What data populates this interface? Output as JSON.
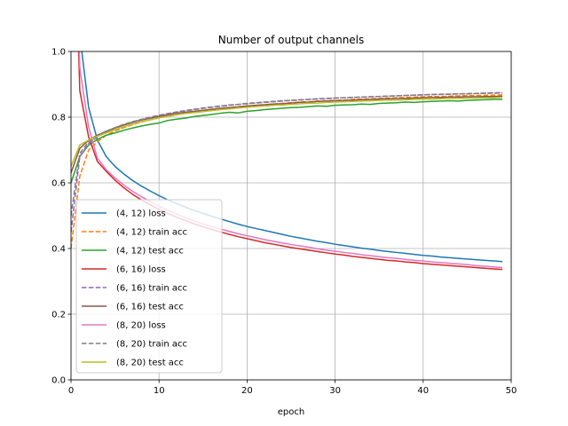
{
  "chart_data": {
    "type": "line",
    "title": "Number of output channels",
    "xlabel": "epoch",
    "ylabel": "",
    "xlim": [
      0,
      50
    ],
    "ylim": [
      0.0,
      1.0
    ],
    "xticks": [
      0,
      10,
      20,
      30,
      40,
      50
    ],
    "yticks": [
      0.0,
      0.2,
      0.4,
      0.6,
      0.8,
      1.0
    ],
    "xtick_labels": [
      "0",
      "10",
      "20",
      "30",
      "40",
      "50"
    ],
    "ytick_labels": [
      "0.0",
      "0.2",
      "0.4",
      "0.6",
      "0.8",
      "1.0"
    ],
    "grid": true,
    "legend_position": "lower-left",
    "x": [
      0,
      1,
      2,
      3,
      4,
      5,
      6,
      7,
      8,
      9,
      10,
      11,
      12,
      13,
      14,
      15,
      16,
      17,
      18,
      19,
      20,
      21,
      22,
      23,
      24,
      25,
      26,
      27,
      28,
      29,
      30,
      31,
      32,
      33,
      34,
      35,
      36,
      37,
      38,
      39,
      40,
      41,
      42,
      43,
      44,
      45,
      46,
      47,
      48,
      49
    ],
    "series": [
      {
        "name": "(4, 12) loss",
        "color": "#1f77b4",
        "dash": "solid",
        "values": [
          1.6,
          1.05,
          0.83,
          0.73,
          0.68,
          0.65,
          0.627,
          0.607,
          0.59,
          0.575,
          0.561,
          0.548,
          0.537,
          0.526,
          0.516,
          0.507,
          0.498,
          0.49,
          0.482,
          0.474,
          0.467,
          0.461,
          0.455,
          0.449,
          0.443,
          0.437,
          0.432,
          0.427,
          0.422,
          0.418,
          0.413,
          0.409,
          0.405,
          0.401,
          0.398,
          0.394,
          0.391,
          0.388,
          0.385,
          0.382,
          0.379,
          0.377,
          0.374,
          0.372,
          0.37,
          0.368,
          0.366,
          0.364,
          0.362,
          0.36
        ]
      },
      {
        "name": "(4, 12) train acc",
        "color": "#ff7f0e",
        "dash": "dashed",
        "values": [
          0.4,
          0.62,
          0.7,
          0.725,
          0.745,
          0.758,
          0.768,
          0.777,
          0.785,
          0.792,
          0.798,
          0.803,
          0.808,
          0.812,
          0.816,
          0.82,
          0.823,
          0.826,
          0.829,
          0.832,
          0.834,
          0.836,
          0.838,
          0.84,
          0.842,
          0.844,
          0.846,
          0.847,
          0.849,
          0.85,
          0.851,
          0.852,
          0.854,
          0.855,
          0.856,
          0.857,
          0.858,
          0.859,
          0.86,
          0.861,
          0.862,
          0.863,
          0.863,
          0.864,
          0.865,
          0.866,
          0.866,
          0.867,
          0.867,
          0.868
        ]
      },
      {
        "name": "(4, 12) test acc",
        "color": "#2ca02c",
        "dash": "solid",
        "values": [
          0.6,
          0.68,
          0.715,
          0.732,
          0.745,
          0.752,
          0.76,
          0.767,
          0.773,
          0.778,
          0.782,
          0.79,
          0.794,
          0.797,
          0.802,
          0.805,
          0.808,
          0.812,
          0.815,
          0.813,
          0.818,
          0.82,
          0.823,
          0.825,
          0.827,
          0.829,
          0.83,
          0.832,
          0.834,
          0.833,
          0.836,
          0.837,
          0.838,
          0.84,
          0.839,
          0.842,
          0.843,
          0.844,
          0.846,
          0.845,
          0.847,
          0.848,
          0.849,
          0.85,
          0.849,
          0.851,
          0.852,
          0.853,
          0.854,
          0.854
        ]
      },
      {
        "name": "(6, 16) loss",
        "color": "#d62728",
        "dash": "solid",
        "values": [
          1.8,
          0.88,
          0.74,
          0.665,
          0.635,
          0.608,
          0.585,
          0.565,
          0.548,
          0.533,
          0.519,
          0.507,
          0.495,
          0.485,
          0.475,
          0.466,
          0.458,
          0.45,
          0.443,
          0.436,
          0.43,
          0.424,
          0.418,
          0.413,
          0.408,
          0.403,
          0.399,
          0.395,
          0.391,
          0.387,
          0.383,
          0.38,
          0.376,
          0.373,
          0.37,
          0.367,
          0.364,
          0.362,
          0.359,
          0.357,
          0.354,
          0.352,
          0.35,
          0.348,
          0.346,
          0.344,
          0.342,
          0.34,
          0.338,
          0.336
        ]
      },
      {
        "name": "(6, 16) train acc",
        "color": "#9467bd",
        "dash": "dashed",
        "values": [
          0.45,
          0.68,
          0.72,
          0.74,
          0.755,
          0.767,
          0.777,
          0.786,
          0.793,
          0.8,
          0.806,
          0.811,
          0.816,
          0.82,
          0.824,
          0.828,
          0.831,
          0.834,
          0.837,
          0.839,
          0.842,
          0.844,
          0.846,
          0.848,
          0.85,
          0.851,
          0.853,
          0.854,
          0.856,
          0.857,
          0.858,
          0.859,
          0.86,
          0.861,
          0.862,
          0.863,
          0.864,
          0.865,
          0.866,
          0.867,
          0.868,
          0.869,
          0.869,
          0.87,
          0.871,
          0.871,
          0.872,
          0.873,
          0.873,
          0.874
        ]
      },
      {
        "name": "(6, 16) test acc",
        "color": "#8c564b",
        "dash": "solid",
        "values": [
          0.63,
          0.705,
          0.73,
          0.745,
          0.757,
          0.767,
          0.776,
          0.784,
          0.791,
          0.797,
          0.802,
          0.807,
          0.812,
          0.815,
          0.818,
          0.821,
          0.824,
          0.827,
          0.829,
          0.831,
          0.834,
          0.836,
          0.838,
          0.84,
          0.841,
          0.843,
          0.845,
          0.846,
          0.848,
          0.849,
          0.85,
          0.851,
          0.852,
          0.853,
          0.854,
          0.855,
          0.856,
          0.857,
          0.857,
          0.858,
          0.859,
          0.86,
          0.86,
          0.861,
          0.861,
          0.862,
          0.862,
          0.863,
          0.863,
          0.864
        ]
      },
      {
        "name": "(8, 20) loss",
        "color": "#e377c2",
        "dash": "solid",
        "values": [
          1.7,
          0.95,
          0.77,
          0.675,
          0.64,
          0.615,
          0.593,
          0.574,
          0.558,
          0.543,
          0.529,
          0.516,
          0.505,
          0.494,
          0.484,
          0.475,
          0.467,
          0.459,
          0.452,
          0.445,
          0.439,
          0.433,
          0.427,
          0.422,
          0.417,
          0.412,
          0.408,
          0.404,
          0.399,
          0.395,
          0.392,
          0.388,
          0.385,
          0.381,
          0.378,
          0.375,
          0.372,
          0.37,
          0.367,
          0.364,
          0.362,
          0.359,
          0.357,
          0.355,
          0.353,
          0.351,
          0.348,
          0.346,
          0.344,
          0.342
        ]
      },
      {
        "name": "(8, 20) train acc",
        "color": "#7f7f7f",
        "dash": "dashed",
        "values": [
          0.5,
          0.69,
          0.725,
          0.742,
          0.757,
          0.768,
          0.778,
          0.786,
          0.793,
          0.799,
          0.805,
          0.81,
          0.815,
          0.819,
          0.823,
          0.827,
          0.83,
          0.833,
          0.836,
          0.839,
          0.841,
          0.843,
          0.845,
          0.847,
          0.849,
          0.851,
          0.852,
          0.854,
          0.855,
          0.856,
          0.858,
          0.859,
          0.86,
          0.861,
          0.862,
          0.863,
          0.864,
          0.865,
          0.866,
          0.867,
          0.868,
          0.869,
          0.87,
          0.87,
          0.871,
          0.872,
          0.872,
          0.873,
          0.874,
          0.875
        ]
      },
      {
        "name": "(8, 20) test acc",
        "color": "#bcbd22",
        "dash": "solid",
        "values": [
          0.65,
          0.715,
          0.73,
          0.742,
          0.752,
          0.762,
          0.771,
          0.779,
          0.786,
          0.792,
          0.798,
          0.802,
          0.807,
          0.811,
          0.814,
          0.817,
          0.82,
          0.823,
          0.825,
          0.828,
          0.83,
          0.832,
          0.834,
          0.836,
          0.837,
          0.839,
          0.841,
          0.842,
          0.843,
          0.845,
          0.846,
          0.847,
          0.848,
          0.849,
          0.85,
          0.851,
          0.852,
          0.852,
          0.853,
          0.854,
          0.855,
          0.855,
          0.856,
          0.857,
          0.857,
          0.858,
          0.858,
          0.859,
          0.859,
          0.86
        ]
      }
    ]
  }
}
